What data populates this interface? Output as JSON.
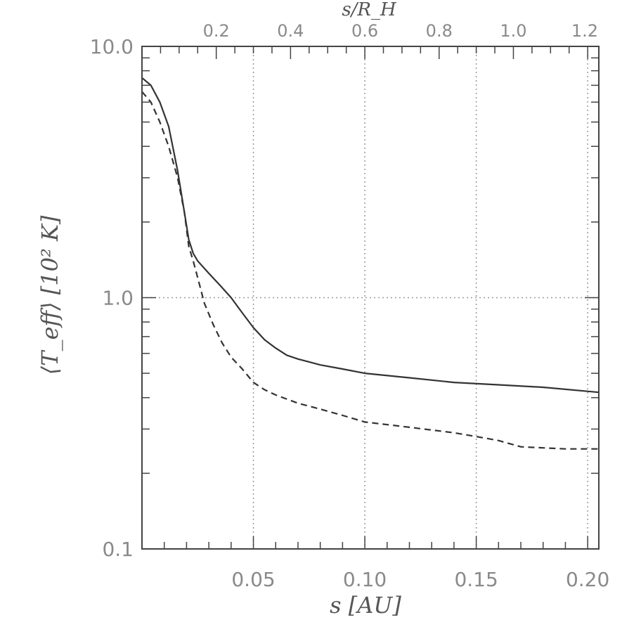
{
  "chart_data": {
    "type": "line",
    "x_axis": {
      "label": "s   [AU]",
      "range": [
        0.0,
        0.205
      ],
      "scale": "linear",
      "major_ticks": [
        0.05,
        0.1,
        0.15,
        0.2
      ],
      "tick_labels": [
        "0.05",
        "0.10",
        "0.15",
        "0.20"
      ]
    },
    "top_axis": {
      "label": "s/R_H",
      "ticks": [
        0.2,
        0.4,
        0.6,
        0.8,
        1.0,
        1.2
      ],
      "tick_labels": [
        "0.2",
        "0.4",
        "0.6",
        "0.8",
        "1.0",
        "1.2"
      ]
    },
    "y_axis": {
      "label": "⟨T_eff⟩  [10² K]",
      "range": [
        0.1,
        10.0
      ],
      "scale": "log",
      "major_ticks": [
        0.1,
        1.0,
        10.0
      ],
      "tick_labels": [
        "0.1",
        "1.0",
        "10.0"
      ]
    },
    "grid": {
      "vertical_at": [
        0.05,
        0.1,
        0.15,
        0.2
      ],
      "horizontal_at": [
        1.0
      ],
      "style": "dotted"
    },
    "series": [
      {
        "style": "solid",
        "x": [
          0.0,
          0.004,
          0.008,
          0.012,
          0.016,
          0.019,
          0.021,
          0.023,
          0.025,
          0.03,
          0.035,
          0.04,
          0.045,
          0.05,
          0.055,
          0.06,
          0.065,
          0.07,
          0.075,
          0.08,
          0.09,
          0.1,
          0.12,
          0.14,
          0.16,
          0.18,
          0.205
        ],
        "y": [
          7.5,
          7.0,
          6.0,
          4.8,
          3.2,
          2.2,
          1.7,
          1.5,
          1.4,
          1.25,
          1.12,
          1.0,
          0.87,
          0.76,
          0.68,
          0.63,
          0.59,
          0.57,
          0.555,
          0.54,
          0.52,
          0.5,
          0.48,
          0.46,
          0.45,
          0.44,
          0.42
        ]
      },
      {
        "style": "dashed",
        "x": [
          0.0,
          0.004,
          0.008,
          0.012,
          0.016,
          0.019,
          0.021,
          0.023,
          0.025,
          0.028,
          0.032,
          0.036,
          0.04,
          0.045,
          0.05,
          0.055,
          0.06,
          0.07,
          0.08,
          0.09,
          0.1,
          0.12,
          0.14,
          0.15,
          0.16,
          0.17,
          0.19,
          0.205
        ],
        "y": [
          6.6,
          6.0,
          5.0,
          4.0,
          3.0,
          2.2,
          1.6,
          1.4,
          1.2,
          0.95,
          0.78,
          0.66,
          0.58,
          0.52,
          0.46,
          0.43,
          0.41,
          0.38,
          0.36,
          0.34,
          0.32,
          0.305,
          0.29,
          0.28,
          0.27,
          0.255,
          0.25,
          0.25
        ]
      }
    ]
  }
}
